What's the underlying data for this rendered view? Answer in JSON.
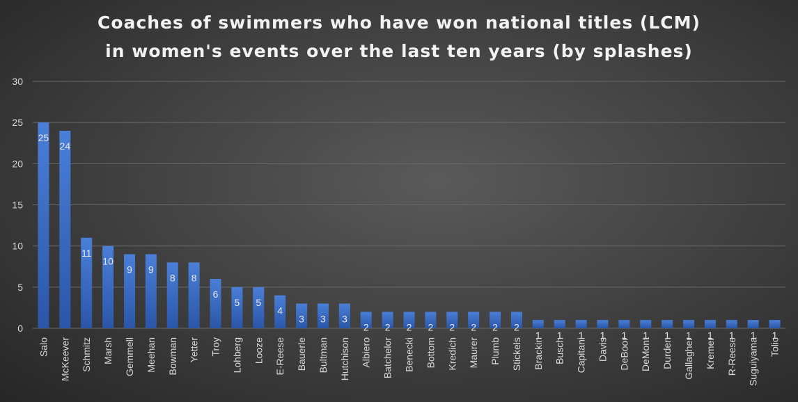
{
  "chart_data": {
    "type": "bar",
    "title_lines": [
      "Coaches of swimmers who have won national titles (LCM)",
      "in women's events over the last ten years (by splashes)"
    ],
    "xlabel": "",
    "ylabel": "",
    "ylim": [
      0,
      30
    ],
    "yticks": [
      0,
      5,
      10,
      15,
      20,
      25,
      30
    ],
    "grid": true,
    "legend": "none",
    "categories": [
      "Salo",
      "McKeever",
      "Schmitz",
      "Marsh",
      "Gemmell",
      "Meehan",
      "Bowman",
      "Yetter",
      "Troy",
      "Lohberg",
      "Looze",
      "E-Reese",
      "Bauerle",
      "Bultman",
      "Hutchison",
      "Albiero",
      "Batchelor",
      "Benecki",
      "Bottom",
      "Kredich",
      "Maurer",
      "Plumb",
      "Stickels",
      "Brackin",
      "Busch",
      "Capitani",
      "Davis",
      "DeBoor",
      "DeMont",
      "Durden",
      "Gallagher",
      "Kremer",
      "R-Reese",
      "Suguiyama",
      "Tolic"
    ],
    "values": [
      25,
      24,
      11,
      10,
      9,
      9,
      8,
      8,
      6,
      5,
      5,
      4,
      3,
      3,
      3,
      2,
      2,
      2,
      2,
      2,
      2,
      2,
      2,
      1,
      1,
      1,
      1,
      1,
      1,
      1,
      1,
      1,
      1,
      1,
      1
    ],
    "colors": {
      "bar_top": "#4a7fd8",
      "bar_bottom": "#2a56a8",
      "text": "#d9d9d9",
      "grid": "#6a6a6a",
      "data_label": "#e6e6e6"
    }
  }
}
